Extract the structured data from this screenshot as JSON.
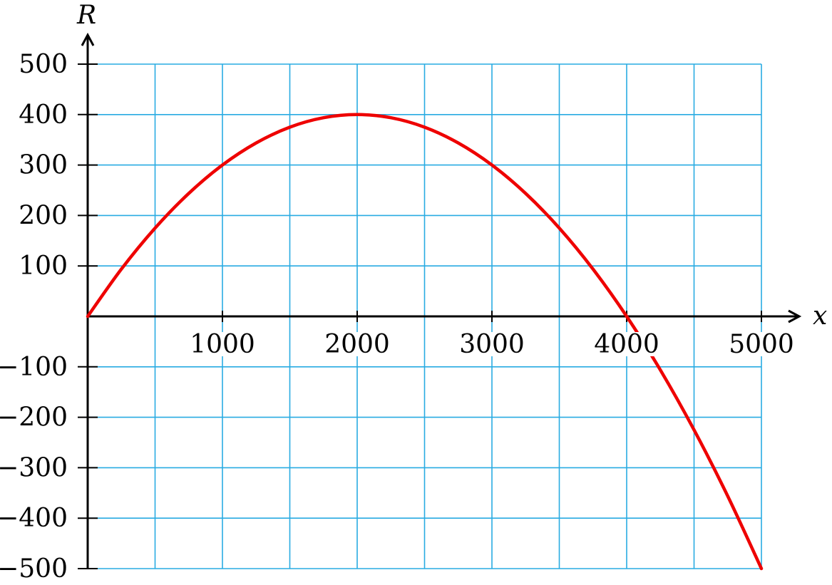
{
  "chart_data": {
    "type": "line",
    "xlabel": "x",
    "ylabel": "R",
    "xlim": [
      0,
      5000
    ],
    "ylim": [
      -500,
      500
    ],
    "x_ticks": [
      1000,
      2000,
      3000,
      4000,
      5000
    ],
    "x_tick_labels": [
      "1000",
      "2000",
      "3000",
      "4000",
      "5000"
    ],
    "y_ticks": [
      500,
      400,
      300,
      200,
      100,
      -100,
      -200,
      -300,
      -400,
      -500
    ],
    "y_tick_labels": [
      "500",
      "400",
      "300",
      "200",
      "100",
      "−100",
      "−200",
      "−300",
      "−400",
      "−500"
    ],
    "grid": true,
    "x_grid_step": 500,
    "y_grid_step": 100,
    "series": [
      {
        "x": [
          0,
          250,
          500,
          750,
          1000,
          1250,
          1500,
          1750,
          2000,
          2250,
          2500,
          2750,
          3000,
          3250,
          3500,
          3750,
          4000,
          4250,
          4500,
          4750,
          5000
        ],
        "y": [
          0,
          93.75,
          175,
          243.75,
          300,
          343.75,
          375,
          393.75,
          400,
          393.75,
          375,
          343.75,
          300,
          243.75,
          175,
          93.75,
          0,
          -106.25,
          -225,
          -356.25,
          -500
        ]
      }
    ],
    "colors": {
      "grid": "#29abe2",
      "curve": "#ee0000",
      "axes": "#000000"
    }
  }
}
